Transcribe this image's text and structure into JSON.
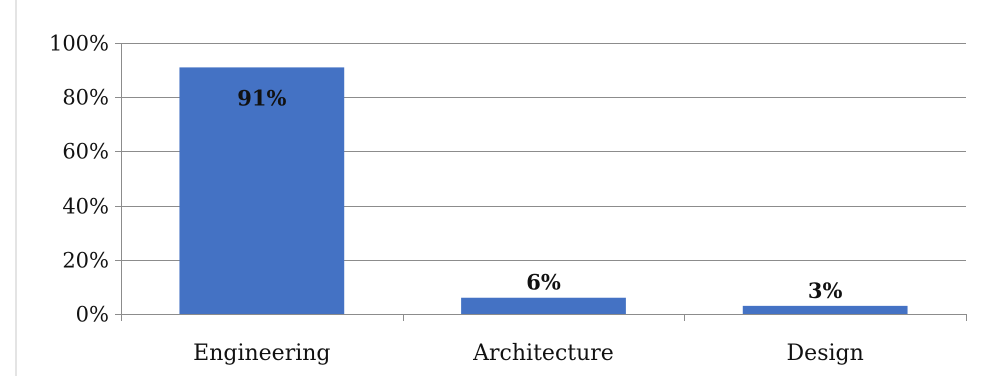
{
  "chart_data": {
    "type": "bar",
    "title": "",
    "xlabel": "",
    "ylabel": "",
    "categories": [
      "Engineering",
      "Architecture",
      "Design"
    ],
    "values": [
      91,
      6,
      3
    ],
    "data_labels": [
      "91%",
      "6%",
      "3%"
    ],
    "ylim": [
      0,
      100
    ],
    "y_ticks": [
      0,
      20,
      40,
      60,
      80,
      100
    ],
    "y_tick_labels": [
      "0%",
      "20%",
      "40%",
      "60%",
      "80%",
      "100%"
    ],
    "grid": true,
    "legend": "none",
    "bar_color": "#4472C4",
    "gridline_color": "#8C8C8C",
    "axis_color": "#8C8C8C"
  }
}
